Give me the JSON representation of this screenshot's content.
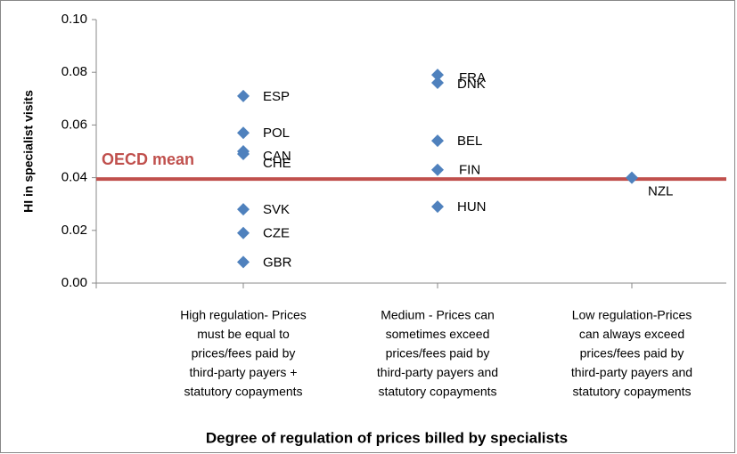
{
  "chart_data": {
    "type": "scatter",
    "x_label": "Degree of regulation of prices billed by specialists",
    "y_label": "HI in specialist  visits",
    "ylim": [
      0,
      0.1
    ],
    "yticks": [
      {
        "value": 0,
        "label": "0.00"
      },
      {
        "value": 0.02,
        "label": "0.02"
      },
      {
        "value": 0.04,
        "label": "0.04"
      },
      {
        "value": 0.06,
        "label": "0.06"
      },
      {
        "value": 0.08,
        "label": "0.08"
      },
      {
        "value": 0.1,
        "label": "0.10"
      }
    ],
    "color": "#4f81bd",
    "groups": [
      {
        "label": [
          "High regulation- Prices",
          "must be equal to",
          "prices/fees paid by",
          "third-party payers +",
          "statutory copayments"
        ],
        "points": [
          {
            "label": "ESP",
            "value": 0.071
          },
          {
            "label": "POL",
            "value": 0.057
          },
          {
            "label": "CAN",
            "value": 0.05
          },
          {
            "label": "CHE",
            "value": 0.049
          },
          {
            "label": "SVK",
            "value": 0.028
          },
          {
            "label": "CZE",
            "value": 0.019
          },
          {
            "label": "GBR",
            "value": 0.008
          }
        ]
      },
      {
        "label": [
          "Medium - Prices can",
          "sometimes exceed",
          "prices/fees paid by",
          "third-party payers and",
          "statutory copayments"
        ],
        "points": [
          {
            "label": "FRA",
            "value": 0.079
          },
          {
            "label": "DNK",
            "value": 0.076
          },
          {
            "label": "BEL",
            "value": 0.054
          },
          {
            "label": "FIN",
            "value": 0.043
          },
          {
            "label": "HUN",
            "value": 0.029
          }
        ]
      },
      {
        "label": [
          "Low regulation-Prices",
          "can always exceed",
          "prices/fees paid by",
          "third-party payers and",
          "statutory copayments"
        ],
        "points": [
          {
            "label": "NZL",
            "value": 0.04
          }
        ]
      }
    ],
    "reference_line": {
      "label": "OECD mean",
      "value": 0.0395,
      "color": "#c0504d"
    }
  }
}
